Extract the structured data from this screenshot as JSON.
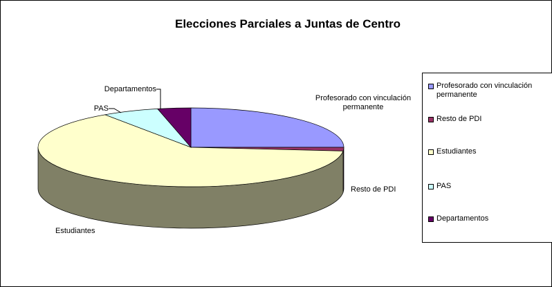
{
  "chart_data": {
    "type": "pie3d",
    "title": "Elecciones Parciales a Juntas de Centro",
    "categories": [
      "Profesorado con vinculación permanente",
      "Resto de PDI",
      "Estudiantes",
      "PAS",
      "Departamentos"
    ],
    "values": [
      25,
      1.5,
      64,
      6,
      3.5
    ],
    "colors": [
      "#9999ff",
      "#993366",
      "#ffffcc",
      "#ccffff",
      "#660066"
    ],
    "legend": "right"
  }
}
